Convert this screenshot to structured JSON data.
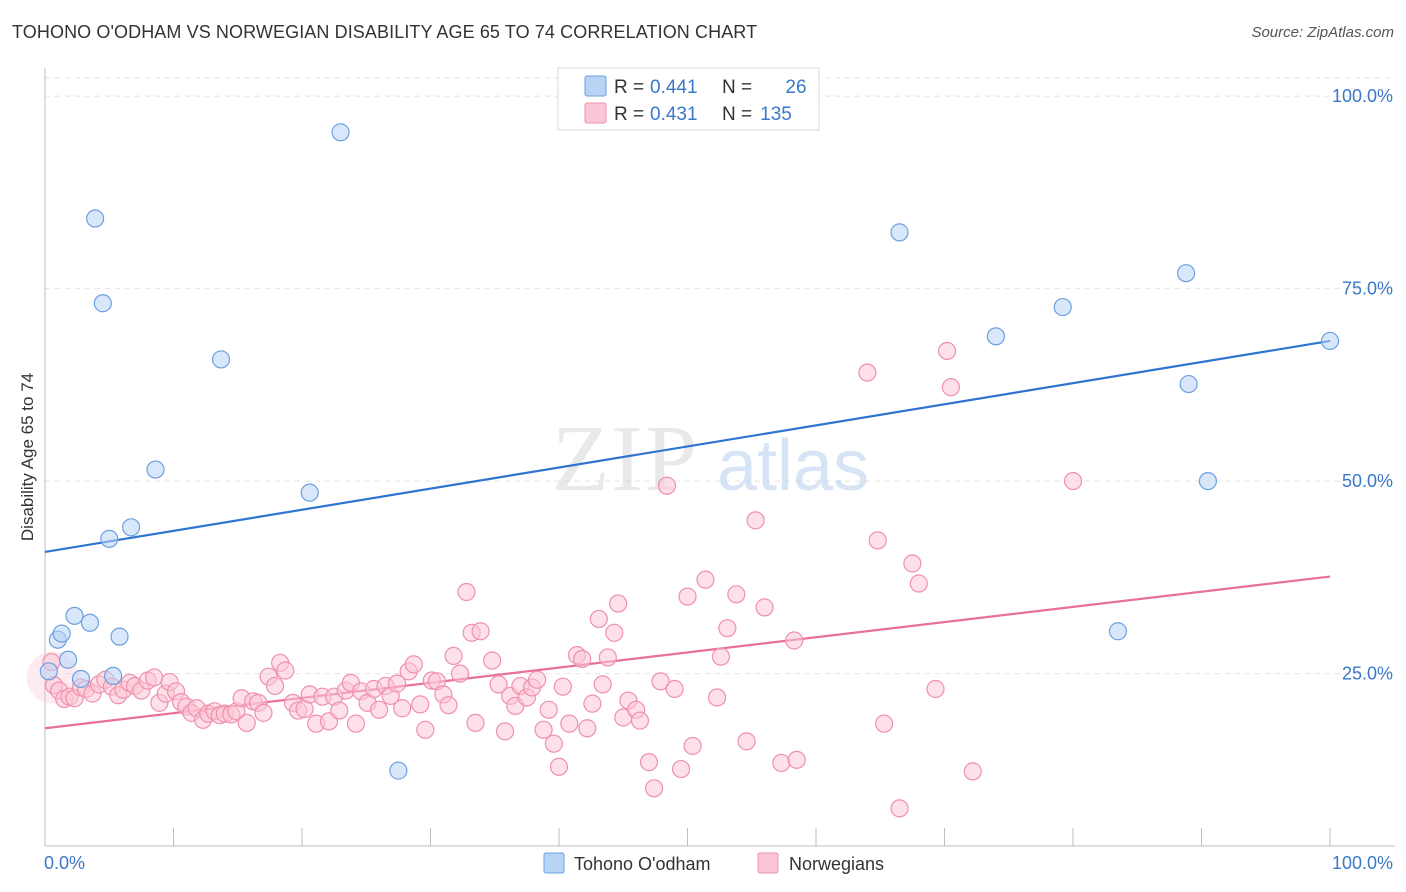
{
  "header": {
    "title": "TOHONO O'ODHAM VS NORWEGIAN DISABILITY AGE 65 TO 74 CORRELATION CHART",
    "source": "Source: ZipAtlas.com"
  },
  "watermark": {
    "zip": "ZIP",
    "atlas": "atlas"
  },
  "stats": {
    "r_label": "R =",
    "n_label": "N =",
    "rows": [
      {
        "r": "0.441",
        "n": "26",
        "color": "#a8c8f0"
      },
      {
        "r": "0.431",
        "n": "135",
        "color": "#f8b8cc"
      }
    ]
  },
  "chart_data": {
    "type": "scatter",
    "title": "TOHONO O'ODHAM VS NORWEGIAN DISABILITY AGE 65 TO 74 CORRELATION CHART",
    "xlabel": "",
    "ylabel": "Disability Age 65 to 74",
    "xlim": [
      0,
      100
    ],
    "ylim": [
      3,
      103
    ],
    "x_tick_labels": [
      "0.0%",
      "100.0%"
    ],
    "y_ticks": [
      {
        "value": 100,
        "label": "100.0%"
      },
      {
        "value": 75,
        "label": "75.0%"
      },
      {
        "value": 50,
        "label": "50.0%"
      },
      {
        "value": 25,
        "label": "25.0%"
      }
    ],
    "x_minor_ticks": [
      0,
      10,
      20,
      30,
      40,
      50,
      60,
      70,
      80,
      90,
      100
    ],
    "grid": true,
    "legend_position": "bottom-center",
    "series": [
      {
        "name": "Tohono O'odham",
        "color": "#6da0e0",
        "fill": "#b8d3f4",
        "line_color": "#2f74d0",
        "trend": {
          "x0": 0,
          "y0": 40.8,
          "x1": 100,
          "y1": 68.2
        },
        "points": [
          [
            0.3,
            25.3
          ],
          [
            1.0,
            29.4
          ],
          [
            1.3,
            30.2
          ],
          [
            1.8,
            26.8
          ],
          [
            2.3,
            32.5
          ],
          [
            2.8,
            24.3
          ],
          [
            3.5,
            31.6
          ],
          [
            3.9,
            84.1
          ],
          [
            4.5,
            73.1
          ],
          [
            5.0,
            42.5
          ],
          [
            5.3,
            24.7
          ],
          [
            5.8,
            29.8
          ],
          [
            6.7,
            44.0
          ],
          [
            8.6,
            51.5
          ],
          [
            13.7,
            65.8
          ],
          [
            20.6,
            48.5
          ],
          [
            23.0,
            95.3
          ],
          [
            27.5,
            12.4
          ],
          [
            66.5,
            82.3
          ],
          [
            74.0,
            68.8
          ],
          [
            79.2,
            72.6
          ],
          [
            83.5,
            30.5
          ],
          [
            88.8,
            77.0
          ],
          [
            89.0,
            62.6
          ],
          [
            90.5,
            50.0
          ],
          [
            100.0,
            68.2
          ]
        ]
      },
      {
        "name": "Norwegians",
        "color": "#ef90ae",
        "fill": "#fbc6d6",
        "line_color": "#e8709a",
        "trend": {
          "x0": 0,
          "y0": 17.9,
          "x1": 100,
          "y1": 37.6
        },
        "points": [
          [
            0.5,
            26.5
          ],
          [
            0.7,
            23.5
          ],
          [
            1.1,
            22.8
          ],
          [
            1.5,
            21.7
          ],
          [
            1.9,
            22.0
          ],
          [
            2.3,
            21.8
          ],
          [
            2.8,
            23.2
          ],
          [
            3.2,
            23.0
          ],
          [
            3.7,
            22.4
          ],
          [
            4.2,
            23.6
          ],
          [
            4.7,
            24.2
          ],
          [
            5.2,
            23.3
          ],
          [
            5.7,
            22.2
          ],
          [
            6.1,
            22.9
          ],
          [
            6.6,
            23.8
          ],
          [
            7.0,
            23.4
          ],
          [
            7.5,
            22.8
          ],
          [
            8.0,
            24.1
          ],
          [
            8.5,
            24.5
          ],
          [
            8.9,
            21.2
          ],
          [
            9.4,
            22.4
          ],
          [
            9.7,
            23.9
          ],
          [
            10.2,
            22.7
          ],
          [
            10.6,
            21.3
          ],
          [
            11.0,
            20.7
          ],
          [
            11.4,
            19.9
          ],
          [
            11.8,
            20.5
          ],
          [
            12.3,
            19.0
          ],
          [
            12.7,
            19.8
          ],
          [
            13.2,
            20.1
          ],
          [
            13.6,
            19.6
          ],
          [
            14.0,
            19.8
          ],
          [
            14.5,
            19.7
          ],
          [
            14.9,
            20.1
          ],
          [
            15.3,
            21.8
          ],
          [
            15.7,
            18.6
          ],
          [
            16.2,
            21.4
          ],
          [
            16.6,
            21.2
          ],
          [
            17.0,
            19.9
          ],
          [
            17.4,
            24.6
          ],
          [
            17.9,
            23.4
          ],
          [
            18.3,
            26.4
          ],
          [
            18.7,
            25.4
          ],
          [
            19.3,
            21.2
          ],
          [
            19.7,
            20.2
          ],
          [
            20.2,
            20.4
          ],
          [
            20.6,
            22.3
          ],
          [
            21.1,
            18.5
          ],
          [
            21.6,
            22.0
          ],
          [
            22.1,
            18.8
          ],
          [
            22.5,
            22.0
          ],
          [
            22.9,
            20.2
          ],
          [
            23.4,
            22.8
          ],
          [
            23.8,
            23.8
          ],
          [
            24.2,
            18.5
          ],
          [
            24.6,
            22.7
          ],
          [
            25.1,
            21.2
          ],
          [
            25.6,
            23.0
          ],
          [
            26.0,
            20.3
          ],
          [
            26.5,
            23.4
          ],
          [
            26.9,
            22.1
          ],
          [
            27.4,
            23.7
          ],
          [
            27.8,
            20.5
          ],
          [
            28.3,
            25.3
          ],
          [
            28.7,
            26.2
          ],
          [
            29.2,
            21.0
          ],
          [
            29.6,
            17.7
          ],
          [
            30.1,
            24.1
          ],
          [
            30.5,
            24.0
          ],
          [
            31.0,
            22.3
          ],
          [
            31.4,
            20.9
          ],
          [
            31.8,
            27.3
          ],
          [
            32.3,
            25.0
          ],
          [
            32.8,
            35.6
          ],
          [
            33.2,
            30.3
          ],
          [
            33.5,
            18.6
          ],
          [
            33.9,
            30.5
          ],
          [
            34.8,
            26.7
          ],
          [
            35.3,
            23.6
          ],
          [
            35.8,
            17.5
          ],
          [
            36.2,
            22.1
          ],
          [
            36.6,
            20.8
          ],
          [
            37.0,
            23.4
          ],
          [
            37.5,
            21.9
          ],
          [
            37.9,
            23.2
          ],
          [
            38.3,
            24.2
          ],
          [
            38.8,
            17.7
          ],
          [
            39.2,
            20.3
          ],
          [
            39.6,
            15.9
          ],
          [
            40.0,
            12.9
          ],
          [
            40.3,
            23.3
          ],
          [
            40.8,
            18.5
          ],
          [
            41.4,
            27.4
          ],
          [
            41.8,
            26.9
          ],
          [
            42.2,
            17.9
          ],
          [
            42.6,
            21.1
          ],
          [
            43.1,
            32.1
          ],
          [
            43.4,
            23.6
          ],
          [
            43.8,
            27.1
          ],
          [
            44.3,
            30.3
          ],
          [
            44.6,
            34.1
          ],
          [
            45.0,
            19.3
          ],
          [
            45.4,
            21.5
          ],
          [
            46.0,
            20.3
          ],
          [
            46.3,
            18.9
          ],
          [
            47.0,
            13.5
          ],
          [
            47.4,
            10.1
          ],
          [
            47.9,
            24.0
          ],
          [
            48.4,
            49.4
          ],
          [
            49.0,
            23.0
          ],
          [
            49.5,
            12.6
          ],
          [
            50.0,
            35.0
          ],
          [
            50.4,
            15.6
          ],
          [
            51.4,
            37.2
          ],
          [
            52.3,
            21.9
          ],
          [
            52.6,
            27.2
          ],
          [
            53.1,
            30.9
          ],
          [
            53.8,
            35.3
          ],
          [
            54.6,
            16.2
          ],
          [
            55.3,
            44.9
          ],
          [
            56.0,
            33.6
          ],
          [
            57.3,
            13.4
          ],
          [
            58.3,
            29.3
          ],
          [
            58.5,
            13.8
          ],
          [
            64.0,
            64.1
          ],
          [
            64.8,
            42.3
          ],
          [
            65.3,
            18.5
          ],
          [
            66.5,
            7.5
          ],
          [
            67.5,
            39.3
          ],
          [
            68.0,
            36.7
          ],
          [
            69.3,
            23.0
          ],
          [
            70.2,
            66.9
          ],
          [
            70.5,
            62.2
          ],
          [
            72.2,
            12.3
          ],
          [
            80.0,
            50.0
          ]
        ]
      }
    ]
  }
}
